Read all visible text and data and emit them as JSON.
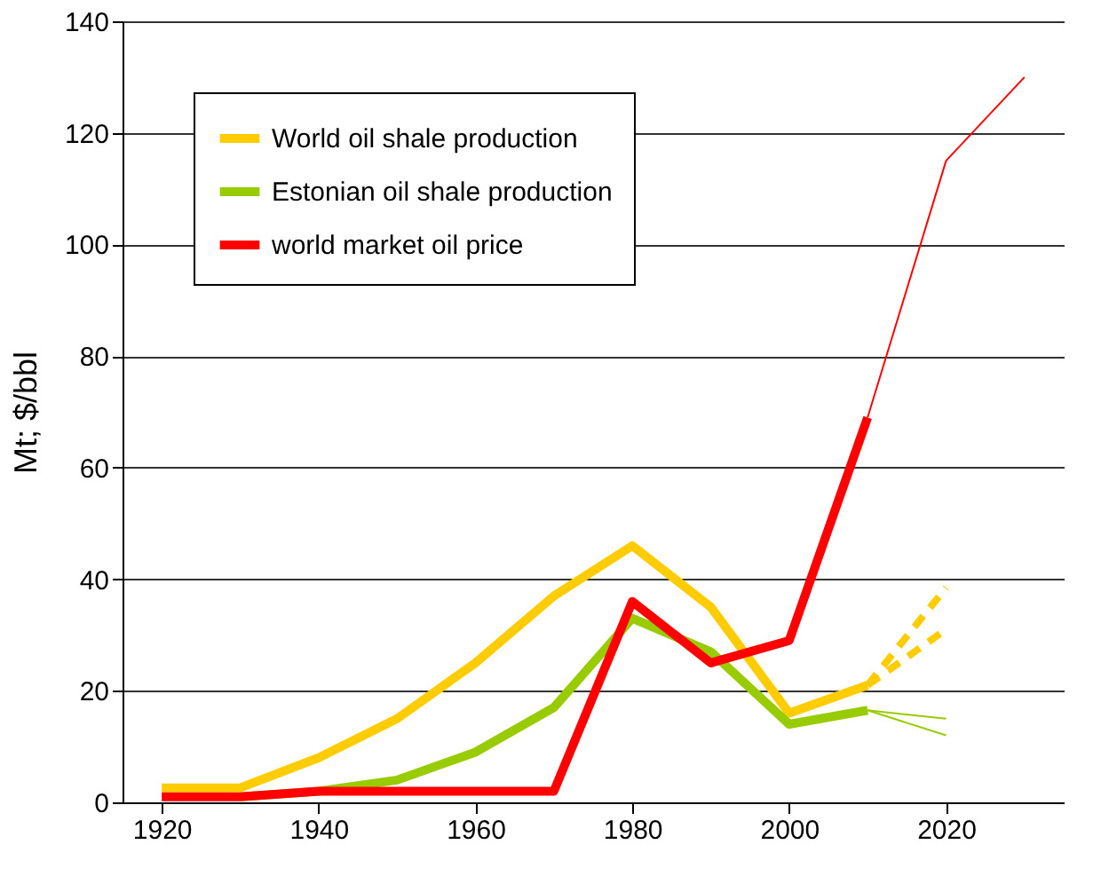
{
  "chart_data": {
    "type": "line",
    "ylabel": "Mt; $/bbl",
    "xlim": [
      1915,
      2035
    ],
    "xticks": [
      1920,
      1940,
      1960,
      1980,
      2000,
      2020
    ],
    "ylim": [
      0,
      140
    ],
    "yticks": [
      0,
      20,
      40,
      60,
      80,
      100,
      120,
      140
    ],
    "grid": "y",
    "legend": "top left",
    "marker": "none",
    "series": [
      {
        "name": "World oil shale production",
        "color": "#ffcc00",
        "line_style": "solid",
        "x": [
          1920,
          1930,
          1940,
          1950,
          1960,
          1970,
          1980,
          1990,
          2000,
          2010
        ],
        "values": [
          2.6,
          2.6,
          8,
          15,
          25,
          37,
          46,
          35,
          16,
          21
        ]
      },
      {
        "color": "#ffcc00",
        "line_style": "dashed",
        "x": [
          2010,
          2020
        ],
        "values": [
          21,
          38.5
        ]
      },
      {
        "color": "#ffcc00",
        "line_style": "dashed",
        "x": [
          2010,
          2020
        ],
        "values": [
          21,
          31
        ]
      },
      {
        "name": "Estonian oil shale production",
        "color": "#99cc00",
        "line_style": "solid",
        "x": [
          1930,
          1940,
          1950,
          1960,
          1970,
          1980,
          1990,
          2000,
          2010
        ],
        "values": [
          1,
          2,
          4,
          9,
          17,
          33,
          27,
          14,
          16.5
        ]
      },
      {
        "color": "#99cc00",
        "line_style": "solid",
        "x": [
          2010,
          2020
        ],
        "values": [
          16.5,
          15
        ]
      },
      {
        "color": "#99cc00",
        "line_style": "solid",
        "x": [
          2010,
          2020
        ],
        "values": [
          16.5,
          12
        ]
      },
      {
        "name": "world market oil price",
        "color": "#ff0000",
        "line_style": "solid",
        "x": [
          1920,
          1930,
          1940,
          1950,
          1960,
          1970,
          1980,
          1990,
          2000,
          2010
        ],
        "values": [
          1,
          1,
          2,
          2,
          2,
          2,
          36,
          25,
          29,
          69
        ]
      },
      {
        "color": "#ff0000",
        "line_style": "solid",
        "x": [
          2010,
          2020,
          2030
        ],
        "values": [
          69,
          115,
          130
        ]
      }
    ]
  }
}
